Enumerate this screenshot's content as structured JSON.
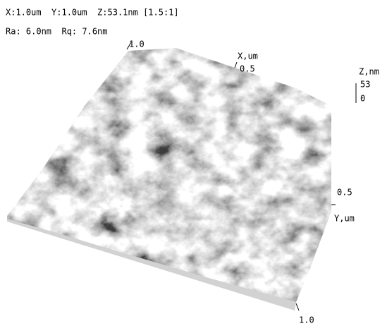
{
  "header": {
    "scan": "X:1.0um  Y:1.0um  Z:53.1nm [1.5:1]",
    "roughness": "Ra: 6.0nm  Rq: 7.6nm"
  },
  "axes": {
    "x_label": "X,um",
    "x_end": "1.0",
    "x_mid": "0.5",
    "z_label": "Z,nm",
    "z_top": "53",
    "z_bottom": "0",
    "y_label": "Y,um",
    "y_mid": "0.5",
    "y_end": "1.0"
  }
}
